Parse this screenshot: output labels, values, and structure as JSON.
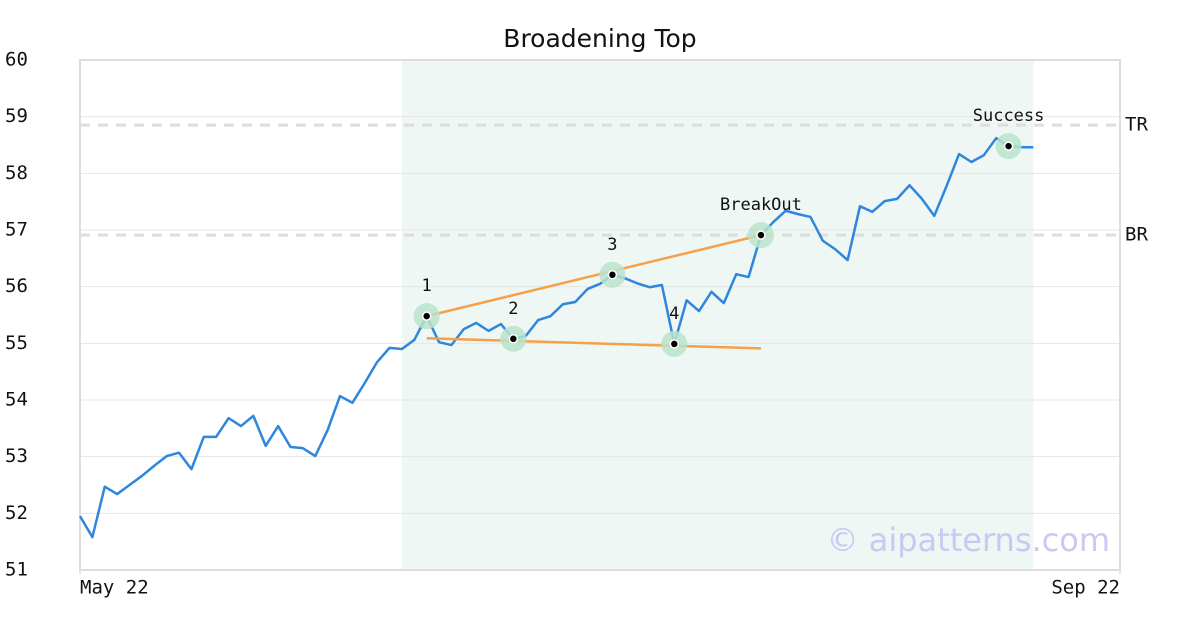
{
  "chart_data": {
    "type": "line",
    "title": "Broadening Top",
    "xlim": [
      0,
      84
    ],
    "xticks": [
      {
        "value": 0,
        "label": "May 22"
      },
      {
        "value": 84,
        "label": "Sep 22"
      }
    ],
    "ylim": [
      51,
      60
    ],
    "yticks": [
      51,
      52,
      53,
      54,
      55,
      56,
      57,
      58,
      59,
      60
    ],
    "grid": true,
    "series": [
      {
        "color": "#2e86de",
        "x": [
          0,
          1,
          2,
          3,
          4,
          5,
          6,
          7,
          8,
          9,
          10,
          11,
          12,
          13,
          14,
          15,
          16,
          17,
          18,
          19,
          20,
          21,
          22,
          23,
          24,
          25,
          26,
          27,
          28,
          29,
          30,
          31,
          32,
          33,
          34,
          35,
          36,
          37,
          38,
          39,
          40,
          41,
          42,
          43,
          44,
          45,
          46,
          47,
          48,
          49,
          50,
          51,
          52,
          53,
          54,
          55,
          56,
          57,
          58,
          59,
          60,
          61,
          62,
          63,
          64,
          65,
          66,
          67,
          68,
          69,
          70,
          71,
          72,
          73,
          74,
          75,
          76,
          77
        ],
        "values": [
          51.95,
          51.58,
          52.47,
          52.34,
          52.5,
          52.66,
          52.84,
          53.01,
          53.07,
          52.78,
          53.35,
          53.35,
          53.68,
          53.54,
          53.72,
          53.19,
          53.54,
          53.17,
          53.15,
          53.01,
          53.47,
          54.07,
          53.95,
          54.3,
          54.67,
          54.92,
          54.9,
          55.06,
          55.48,
          55.02,
          54.97,
          55.25,
          55.36,
          55.22,
          55.34,
          55.08,
          55.13,
          55.41,
          55.48,
          55.69,
          55.73,
          55.96,
          56.05,
          56.21,
          56.15,
          56.06,
          55.99,
          56.03,
          54.99,
          55.76,
          55.57,
          55.91,
          55.71,
          56.22,
          56.17,
          56.91,
          57.14,
          57.34,
          57.28,
          57.23,
          56.81,
          56.66,
          56.47,
          57.42,
          57.32,
          57.51,
          57.55,
          57.79,
          57.55,
          57.25,
          57.78,
          58.34,
          58.2,
          58.32,
          58.62,
          58.48,
          58.46,
          58.46
        ]
      }
    ],
    "shaded_xspan": [
      26,
      77
    ],
    "shade_color": "#eef7f3",
    "trendlines": [
      {
        "color": "#f5a04a",
        "x": [
          28,
          55
        ],
        "values": [
          55.48,
          56.91
        ]
      },
      {
        "color": "#f5a04a",
        "x": [
          28,
          55
        ],
        "values": [
          55.09,
          54.91
        ]
      }
    ],
    "hlines": [
      {
        "label": "TR",
        "value": 58.85
      },
      {
        "label": "BR",
        "value": 56.91
      }
    ],
    "annotations": [
      {
        "label": "1",
        "x": 28,
        "y": 55.48
      },
      {
        "label": "2",
        "x": 35,
        "y": 55.08
      },
      {
        "label": "3",
        "x": 43,
        "y": 56.21
      },
      {
        "label": "4",
        "x": 48,
        "y": 54.99
      },
      {
        "label": "BreakOut",
        "x": 55,
        "y": 56.91
      },
      {
        "label": "Success",
        "x": 75,
        "y": 58.48
      }
    ],
    "watermark": "© aipatterns.com"
  }
}
